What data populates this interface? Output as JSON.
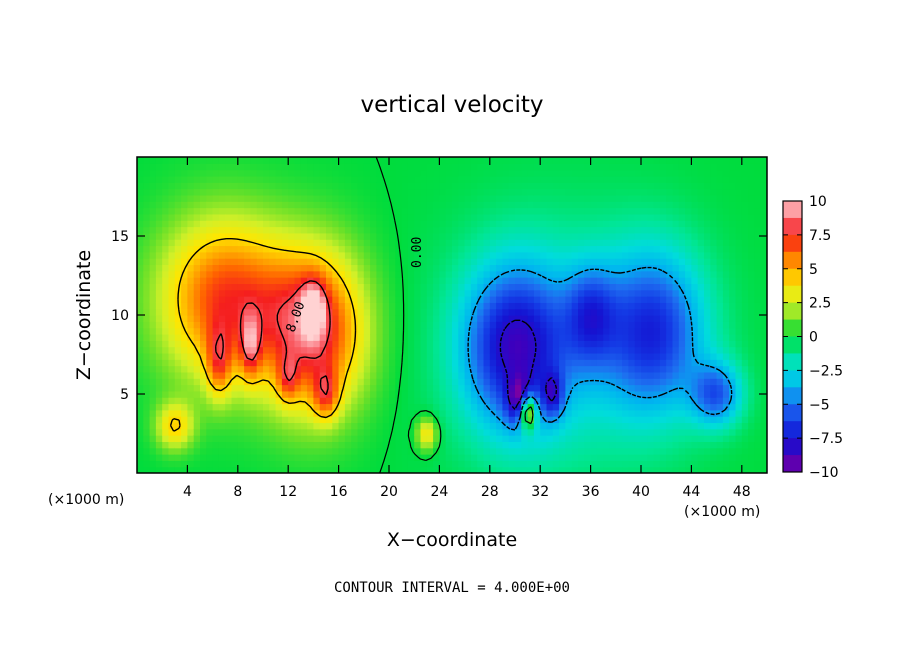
{
  "chart_data": {
    "type": "heatmap",
    "title": "vertical velocity",
    "xlabel": "X−coordinate",
    "ylabel": "Z−coordinate",
    "x_unit_left": "(×1000 m)",
    "x_unit_right": "(×1000 m)",
    "xlim": [
      0,
      50
    ],
    "ylim": [
      0,
      20
    ],
    "xticks": [
      4,
      8,
      12,
      16,
      20,
      24,
      28,
      32,
      36,
      40,
      44,
      48
    ],
    "yticks": [
      5,
      10,
      15
    ],
    "colorbar": {
      "range": [
        -10,
        10
      ],
      "ticks": [
        10,
        7.5,
        5,
        2.5,
        0,
        -2.5,
        -5,
        -7.5,
        -10
      ],
      "tick_labels": [
        "10",
        "7.5",
        "5",
        "2.5",
        "0",
        "−2.5",
        "−5",
        "−7.5",
        "−10"
      ]
    },
    "contour_interval_text": "CONTOUR INTERVAL =  4.000E+00",
    "contour_labels": [
      "0.00",
      "8.00"
    ],
    "features": [
      {
        "kind": "updraft",
        "x": 7,
        "z": 11,
        "sx": 5,
        "sz": 5,
        "value": 7
      },
      {
        "kind": "updraft",
        "x": 14,
        "z": 9,
        "sx": 4,
        "sz": 5,
        "value": 8
      },
      {
        "kind": "updraft",
        "x": 6.5,
        "z": 7,
        "sx": 1,
        "sz": 2.2,
        "value": 4
      },
      {
        "kind": "updraft",
        "x": 9,
        "z": 8,
        "sx": 0.8,
        "sz": 2,
        "value": 4
      },
      {
        "kind": "updraft",
        "x": 14,
        "z": 10.5,
        "sx": 1,
        "sz": 1.8,
        "value": 4
      },
      {
        "kind": "updraft",
        "x": 15,
        "z": 5,
        "sx": 1,
        "sz": 1.6,
        "value": 4
      },
      {
        "kind": "updraft",
        "x": 12,
        "z": 6,
        "sx": 0.8,
        "sz": 1.4,
        "value": 3
      },
      {
        "kind": "updraft",
        "x": 3,
        "z": 3,
        "sx": 1.5,
        "sz": 1.5,
        "value": 4
      },
      {
        "kind": "updraft",
        "x": 23,
        "z": 2.5,
        "sx": 0.8,
        "sz": 1,
        "value": 4
      },
      {
        "kind": "downdraft",
        "x": 30,
        "z": 8,
        "sx": 4,
        "sz": 5,
        "value": -7
      },
      {
        "kind": "downdraft",
        "x": 41,
        "z": 9,
        "sx": 4,
        "sz": 5,
        "value": -6
      },
      {
        "kind": "downdraft",
        "x": 36,
        "z": 10,
        "sx": 2,
        "sz": 3,
        "value": -4
      },
      {
        "kind": "downdraft",
        "x": 46,
        "z": 5,
        "sx": 2,
        "sz": 2,
        "value": -5
      },
      {
        "kind": "downdraft",
        "x": 30.5,
        "z": 4.5,
        "sx": 1,
        "sz": 1.4,
        "value": -6
      },
      {
        "kind": "downdraft",
        "x": 33,
        "z": 5,
        "sx": 0.8,
        "sz": 1.4,
        "value": -4
      },
      {
        "kind": "updraft",
        "x": 31,
        "z": 4,
        "sx": 0.7,
        "sz": 1.2,
        "value": 10
      }
    ]
  }
}
